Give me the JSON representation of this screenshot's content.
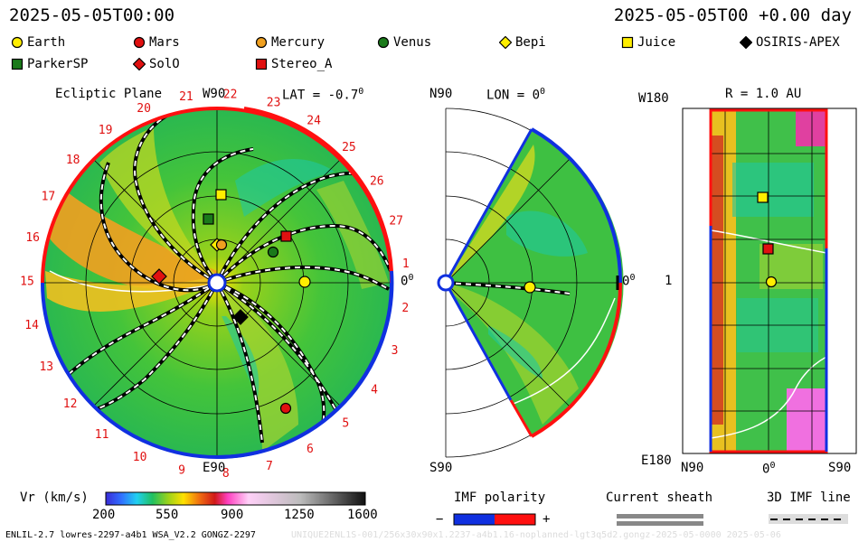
{
  "header": {
    "left_time": "2025-05-05T00:00",
    "right_time": "2025-05-05T00 +0.00 day"
  },
  "legend": [
    {
      "name": "Earth",
      "marker": "circle",
      "color": "#ffee00"
    },
    {
      "name": "Mars",
      "marker": "circle",
      "color": "#e01010"
    },
    {
      "name": "Mercury",
      "marker": "circle",
      "color": "#f0a020"
    },
    {
      "name": "Venus",
      "marker": "circle",
      "color": "#1a7a1a"
    },
    {
      "name": "Bepi",
      "marker": "diamond",
      "color": "#ffee00"
    },
    {
      "name": "Juice",
      "marker": "square",
      "color": "#ffee00"
    },
    {
      "name": "OSIRIS-APEX",
      "marker": "diamond",
      "color": "#000000"
    },
    {
      "name": "ParkerSP",
      "marker": "square",
      "color": "#1a7a1a"
    },
    {
      "name": "SolO",
      "marker": "diamond",
      "color": "#e01010"
    },
    {
      "name": "Stereo_A",
      "marker": "square",
      "color": "#e01010"
    }
  ],
  "panel_ecliptic": {
    "title": "Ecliptic Plane",
    "lat": "LAT = -0.7",
    "lat_degree": "0",
    "top_label": "W90",
    "bottom_label": "E90",
    "right_label": "0",
    "right_degree": "0",
    "sector_numbers": [
      "1",
      "2",
      "3",
      "4",
      "5",
      "6",
      "7",
      "8",
      "9",
      "10",
      "11",
      "12",
      "13",
      "14",
      "15",
      "16",
      "17",
      "18",
      "19",
      "20",
      "21",
      "22",
      "23",
      "24",
      "25",
      "26",
      "27"
    ]
  },
  "panel_meridional": {
    "lon": "LON = 0",
    "lon_degree": "0",
    "top_label": "N90",
    "bottom_label": "S90",
    "right_label": "0",
    "right_degree": "0"
  },
  "panel_map": {
    "r": "R = 1.0 AU",
    "top_left": "W180",
    "bottom_left": "E180",
    "mid_left": "1",
    "bottom_labels": [
      "N90",
      "0",
      "S90"
    ],
    "bottom_mid_degree": "0"
  },
  "colorbar": {
    "label": "Vr (km/s)",
    "ticks": [
      "200",
      "550",
      "900",
      "1250",
      "1600"
    ],
    "min": 200,
    "max": 1600
  },
  "imf_polarity": {
    "label": "IMF polarity",
    "minus": "−",
    "plus": "+"
  },
  "current_sheath": {
    "label": "Current sheath"
  },
  "imf_line": {
    "label": "3D IMF line"
  },
  "footer": {
    "left": "ENLIL-2.7 lowres-2297-a4b1 WSA_V2.2 GONGZ-2297",
    "right": "UNIQUE2ENL1S-001/256x30x90x1.2237-a4b1.16-noplanned-lgt3q5d2.gongz-2025-05-0000   2025-05-06"
  }
}
